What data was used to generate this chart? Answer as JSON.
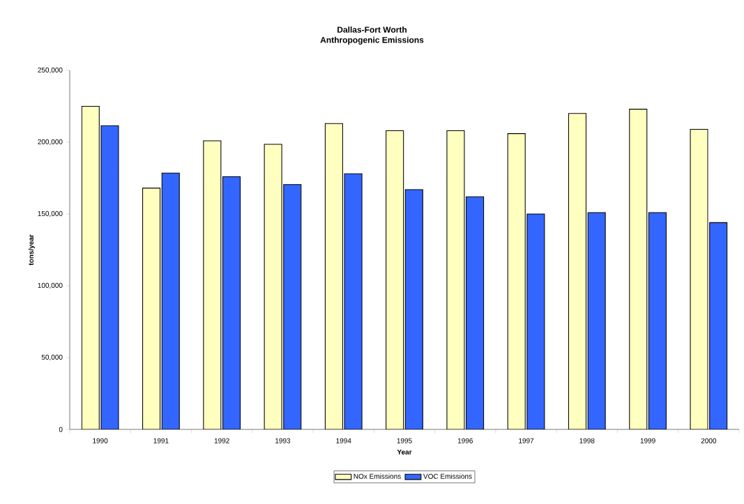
{
  "chart_data": {
    "type": "bar",
    "title": "Dallas-Fort Worth\nAnthropogenic Emissions",
    "xlabel": "Year",
    "ylabel": "tons/year",
    "categories": [
      "1990",
      "1991",
      "1992",
      "1993",
      "1994",
      "1995",
      "1996",
      "1997",
      "1998",
      "1999",
      "2000"
    ],
    "series": [
      {
        "name": "NOx Emissions",
        "color": "#ffffc0",
        "values": [
          225000,
          168000,
          201000,
          198500,
          213000,
          208000,
          208000,
          206000,
          220000,
          223000,
          209000
        ]
      },
      {
        "name": "VOC Emissions",
        "color": "#3366ff",
        "values": [
          211500,
          178500,
          176000,
          170500,
          178000,
          167000,
          162000,
          150000,
          151000,
          151000,
          144000
        ]
      }
    ],
    "ylim": [
      0,
      250000
    ],
    "yticks": [
      {
        "value": 0,
        "label": "0"
      },
      {
        "value": 50000,
        "label": "50,000"
      },
      {
        "value": 100000,
        "label": "100,000"
      },
      {
        "value": 150000,
        "label": "150,000"
      },
      {
        "value": 200000,
        "label": "200,000"
      },
      {
        "value": 250000,
        "label": "250,000"
      }
    ],
    "legend": "bottom",
    "grid": false
  }
}
